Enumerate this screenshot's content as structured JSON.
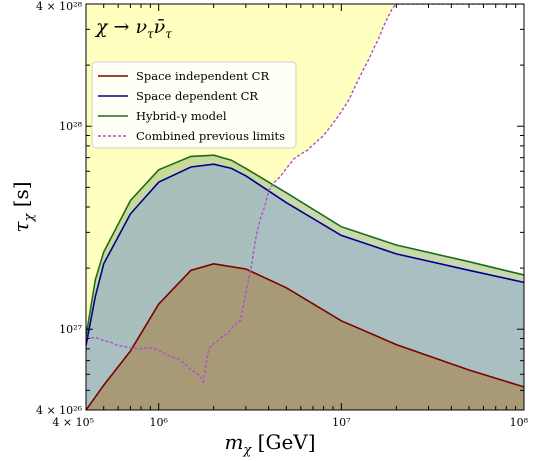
{
  "chart_data": {
    "type": "area",
    "channel_label": "χ → ν_τ ν̄_τ",
    "channel_parts": {
      "chi": "χ",
      "arrow": "→",
      "nu": "ν",
      "sub": "τ",
      "nubar": "ν̄"
    },
    "xlabel": {
      "main": "m",
      "sub": "χ",
      "unit": " [GeV]"
    },
    "ylabel": {
      "main": "τ",
      "sub": "χ",
      "unit": " [s]"
    },
    "xscale": "log",
    "yscale": "log",
    "xlim": [
      400000,
      100000000
    ],
    "ylim": [
      4e+26,
      4e+28
    ],
    "x_ticks": [
      {
        "value": 400000,
        "label": "4 × 10⁵"
      },
      {
        "value": 1000000,
        "label": "10⁶"
      },
      {
        "value": 10000000,
        "label": "10⁷"
      },
      {
        "value": 100000000,
        "label": "10⁸"
      }
    ],
    "y_ticks": [
      {
        "value": 4e+26,
        "label": "4 × 10²⁶"
      },
      {
        "value": 1e+27,
        "label": "10²⁷"
      },
      {
        "value": 1e+28,
        "label": "10²⁸"
      },
      {
        "value": 4e+28,
        "label": "4 × 10²⁸"
      }
    ],
    "legend_position": "upper-left",
    "series": [
      {
        "name": "Space independent CR",
        "color": "#7b0000",
        "fill": "#a88d5d",
        "style": "solid",
        "x": [
          400000,
          500000,
          700000,
          1000000,
          1500000,
          2000000,
          3000000,
          5000000,
          10000000,
          20000000,
          50000000,
          100000000
        ],
        "y": [
          4e+26,
          5.3e+26,
          7.8e+26,
          1.33e+27,
          1.95e+27,
          2.1e+27,
          1.98e+27,
          1.6e+27,
          1.1e+27,
          8.4e+26,
          6.3e+26,
          5.2e+26
        ]
      },
      {
        "name": "Space dependent CR",
        "color": "#00008b",
        "fill": "#9db6c9",
        "style": "solid",
        "x": [
          400000,
          450000,
          500000,
          700000,
          1000000,
          1500000,
          2000000,
          2500000,
          3000000,
          5000000,
          10000000,
          20000000,
          50000000,
          100000000
        ],
        "y": [
          8.3e+26,
          1.45e+27,
          2.1e+27,
          3.7e+27,
          5.3e+27,
          6.3e+27,
          6.5e+27,
          6.2e+27,
          5.7e+27,
          4.2e+27,
          2.9e+27,
          2.35e+27,
          1.95e+27,
          1.7e+27
        ]
      },
      {
        "name": "Hybrid-γ model",
        "color": "#1a6e1a",
        "fill": "#b7cc8f",
        "style": "solid",
        "x": [
          400000,
          450000,
          500000,
          700000,
          1000000,
          1500000,
          2000000,
          2500000,
          3000000,
          5000000,
          10000000,
          20000000,
          50000000,
          100000000
        ],
        "y": [
          9.2e+26,
          1.75e+27,
          2.4e+27,
          4.3e+27,
          6.1e+27,
          7.1e+27,
          7.2e+27,
          6.8e+27,
          6.2e+27,
          4.7e+27,
          3.2e+27,
          2.6e+27,
          2.15e+27,
          1.85e+27
        ]
      },
      {
        "name": "Combined previous limits",
        "color": "#b04fc8",
        "fill": "#ffffc0",
        "style": "dashed",
        "x": [
          400000,
          450000,
          500000,
          550000,
          600000,
          700000,
          800000,
          900000,
          1000000,
          1100000,
          1200000,
          1300000,
          1400000,
          1500000,
          1600000,
          1700000,
          1750000,
          1800000,
          1850000,
          1900000,
          2000000,
          2200000,
          2400000,
          2600000,
          2800000,
          3000000,
          3200000,
          3400000,
          3600000,
          3800000,
          4000000,
          4300000,
          4600000,
          5000000,
          5500000,
          6000000,
          6500000,
          7000000,
          8000000,
          9000000,
          10000000,
          11000000,
          12000000,
          13000000,
          14000000,
          15000000,
          16000000,
          17000000,
          18000000,
          19000000,
          20000000,
          30000000,
          50000000,
          100000000
        ],
        "y": [
          9e+26,
          9.1e+26,
          8.8e+26,
          8.6e+26,
          8.3e+26,
          8.1e+26,
          8e+26,
          8.1e+26,
          7.9e+26,
          7.5e+26,
          7.3e+26,
          7.1e+26,
          6.7e+26,
          6.3e+26,
          6.1e+26,
          5.8e+26,
          5.5e+26,
          6.4e+26,
          7.5e+26,
          8.1e+26,
          8.5e+26,
          9.1e+26,
          9.6e+26,
          1.05e+27,
          1.1e+27,
          1.5e+27,
          2e+27,
          2.8e+27,
          3.5e+27,
          4e+27,
          4.8e+27,
          5.3e+27,
          5.6e+27,
          6.2e+27,
          6.9e+27,
          7.3e+27,
          7.6e+27,
          8.1e+27,
          9e+27,
          1.03e+28,
          1.18e+28,
          1.35e+28,
          1.6e+28,
          1.85e+28,
          2.1e+28,
          2.4e+28,
          2.7e+28,
          3.1e+28,
          3.45e+28,
          3.8e+28,
          4e+28,
          4e+28,
          4e+28,
          4e+28
        ]
      }
    ]
  }
}
